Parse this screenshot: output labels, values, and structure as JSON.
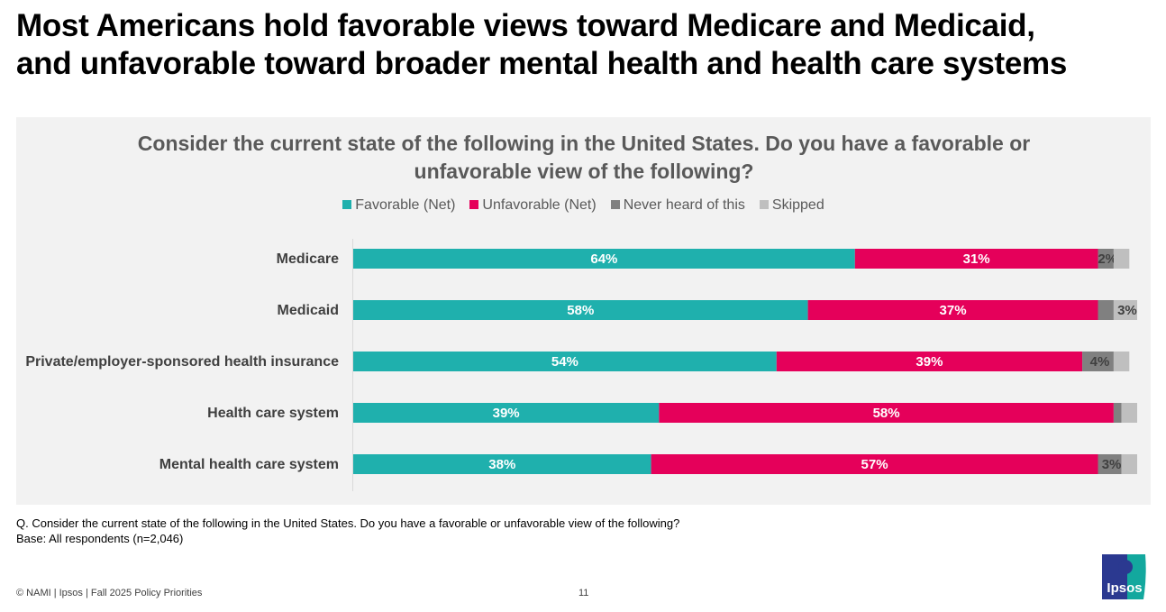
{
  "title_line1": "Most Americans hold favorable views toward Medicare and Medicaid,",
  "title_line2": "and unfavorable toward broader mental health and health care systems",
  "footnote_q": "Q. Consider the current state of the following in the United States. Do you have a favorable or unfavorable view of the following?",
  "footnote_base": "Base: All respondents (n=2,046)",
  "copyright": "© NAMI | Ipsos | Fall 2025 Policy Priorities",
  "page_number": "11",
  "logo_text": "Ipsos",
  "chart_data": {
    "type": "bar",
    "orientation": "horizontal-stacked",
    "title": "Consider the current state of the following in the United States. Do you have a favorable or unfavorable view of the following?",
    "categories": [
      "Medicare",
      "Medicaid",
      "Private/employer-sponsored health insurance",
      "Health care system",
      "Mental health care system"
    ],
    "series": [
      {
        "name": "Favorable (Net)",
        "color": "#1fb0ad",
        "values": [
          64,
          58,
          54,
          39,
          38
        ],
        "labels": [
          "64%",
          "58%",
          "54%",
          "39%",
          "38%"
        ]
      },
      {
        "name": "Unfavorable (Net)",
        "color": "#e5005a",
        "values": [
          31,
          37,
          39,
          58,
          57
        ],
        "labels": [
          "31%",
          "37%",
          "39%",
          "58%",
          "57%"
        ]
      },
      {
        "name": "Never heard of this",
        "color": "#808080",
        "values": [
          2,
          2,
          4,
          1,
          3
        ],
        "labels": [
          "2%",
          "",
          "4%",
          "",
          "3%"
        ]
      },
      {
        "name": "Skipped",
        "color": "#bfbfbf",
        "values": [
          2,
          3,
          2,
          2,
          2
        ],
        "labels": [
          "",
          "3%",
          "",
          "",
          ""
        ]
      }
    ],
    "xlim": [
      0,
      100
    ],
    "legend": "top"
  }
}
